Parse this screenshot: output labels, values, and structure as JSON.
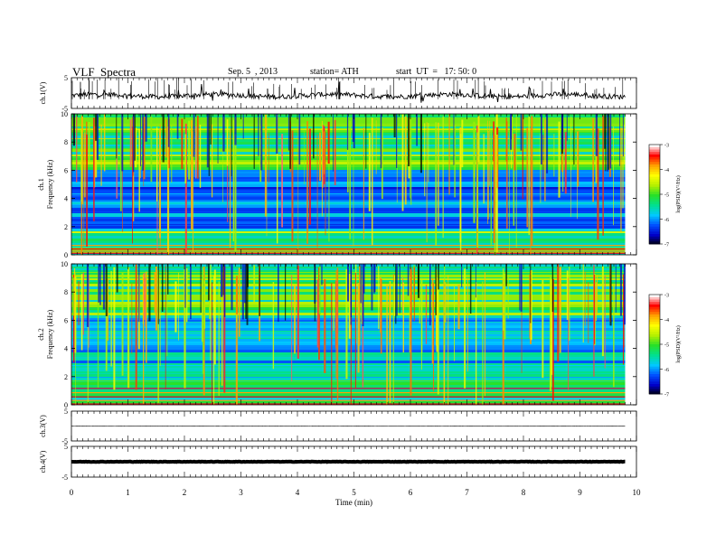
{
  "header": {
    "title": "VLF  Spectra",
    "date": "Sep. 5  , 2013",
    "station": "station= ATH",
    "start": "start  UT  =   17: 50: 0"
  },
  "chart_data": [
    {
      "type": "line",
      "panel": "ch1-waveform",
      "ylabel": "ch.1(V)",
      "yticks": [
        "5",
        "-5"
      ],
      "ylim": [
        -5,
        5
      ],
      "x_range": [
        0,
        9.8
      ],
      "description_level": -0.8
    },
    {
      "type": "heatmap",
      "panel": "ch1-spectrogram",
      "ylabel": "ch.1\nFrequency  (kHz)",
      "ylabel_lines": [
        "ch.1",
        "Frequency  (kHz)"
      ],
      "ylim": [
        0,
        10
      ],
      "yticks": [
        "0",
        "2",
        "4",
        "6",
        "8",
        "10"
      ],
      "colorbar": {
        "label": "log(PSD)(V²/Hz)",
        "ticks": [
          "-3",
          "-4",
          "-5",
          "-6",
          "-7"
        ],
        "range": [
          -7,
          -3
        ]
      }
    },
    {
      "type": "heatmap",
      "panel": "ch2-spectrogram",
      "ylabel_lines": [
        "ch.2",
        "Frequency  (kHz)"
      ],
      "ylim": [
        0,
        10
      ],
      "yticks": [
        "0",
        "2",
        "4",
        "6",
        "8",
        "10"
      ],
      "colorbar": {
        "label": "log(PSD)(V²/Hz)",
        "ticks": [
          "-3",
          "-4",
          "-5",
          "-6",
          "-7"
        ],
        "range": [
          -7,
          -3
        ]
      }
    },
    {
      "type": "line",
      "panel": "ch3-waveform",
      "ylabel": "ch.3(V)",
      "yticks": [
        "5",
        "-5"
      ],
      "ylim": [
        -5,
        5
      ],
      "level": 0
    },
    {
      "type": "line",
      "panel": "ch4-waveform",
      "ylabel": "ch.4(V)",
      "yticks": [
        "5",
        "-5"
      ],
      "ylim": [
        -5,
        5
      ],
      "level": 0
    }
  ],
  "x_axis": {
    "label": "Time  (min)",
    "ticks": [
      "0",
      "1",
      "2",
      "3",
      "4",
      "5",
      "6",
      "7",
      "8",
      "9",
      "10"
    ],
    "xlim": [
      0,
      10
    ],
    "data_end": 9.8
  },
  "colors": {
    "colormap": [
      "#000000",
      "#0000c8",
      "#0050ff",
      "#00c8ff",
      "#00e090",
      "#28e028",
      "#b4f000",
      "#ffff00",
      "#ffa000",
      "#ff0000",
      "#ffffff"
    ]
  }
}
